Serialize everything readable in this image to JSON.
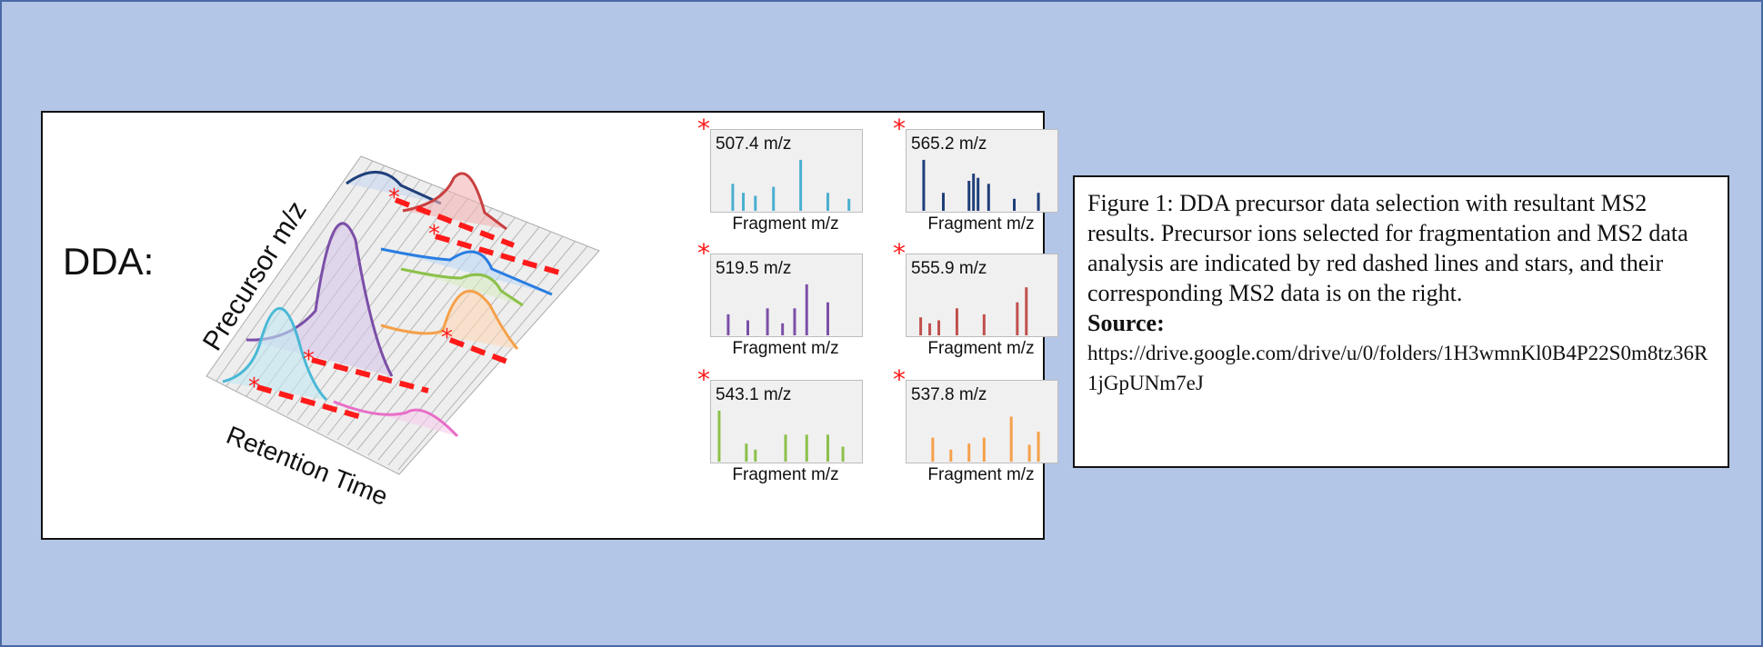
{
  "panel": {
    "method_label": "DDA:",
    "precursor_axis_label": "Precursor m/z",
    "time_axis_label": "Retention Time"
  },
  "colors": {
    "background": "#b3c6e7",
    "selection": "#ff1a1a",
    "peaks": [
      "#1f3f7a",
      "#c94040",
      "#2a7de1",
      "#8cc04a",
      "#f5a04a",
      "#7b4fa8",
      "#4ab8d6",
      "#e86fc8"
    ]
  },
  "spectra": [
    {
      "precursor": "507.4 m/z",
      "axis_label": "Fragment m/z",
      "color": "#4aafd0",
      "fragments": [
        0.15,
        0.22,
        0.3,
        0.42,
        0.6,
        0.78,
        0.92
      ],
      "intensities": [
        0.45,
        0.3,
        0.25,
        0.4,
        0.85,
        0.3,
        0.2
      ]
    },
    {
      "precursor": "565.2 m/z",
      "axis_label": "Fragment m/z",
      "color": "#1f3f7a",
      "fragments": [
        0.12,
        0.25,
        0.42,
        0.45,
        0.48,
        0.55,
        0.72,
        0.88
      ],
      "intensities": [
        0.85,
        0.3,
        0.5,
        0.62,
        0.55,
        0.45,
        0.2,
        0.3
      ]
    },
    {
      "precursor": "519.5 m/z",
      "axis_label": "Fragment m/z",
      "color": "#7b4fa8",
      "fragments": [
        0.12,
        0.25,
        0.38,
        0.48,
        0.56,
        0.64,
        0.78
      ],
      "intensities": [
        0.35,
        0.25,
        0.45,
        0.2,
        0.45,
        0.85,
        0.55
      ]
    },
    {
      "precursor": "555.9 m/z",
      "axis_label": "Fragment m/z",
      "color": "#c0504d",
      "fragments": [
        0.1,
        0.16,
        0.22,
        0.34,
        0.52,
        0.74,
        0.8
      ],
      "intensities": [
        0.3,
        0.2,
        0.25,
        0.45,
        0.35,
        0.55,
        0.8
      ]
    },
    {
      "precursor": "543.1 m/z",
      "axis_label": "Fragment m/z",
      "color": "#8cc04a",
      "fragments": [
        0.06,
        0.24,
        0.3,
        0.5,
        0.64,
        0.78,
        0.88
      ],
      "intensities": [
        0.85,
        0.3,
        0.2,
        0.45,
        0.45,
        0.45,
        0.25
      ]
    },
    {
      "precursor": "537.8 m/z",
      "axis_label": "Fragment m/z",
      "color": "#f5a04a",
      "fragments": [
        0.18,
        0.3,
        0.42,
        0.52,
        0.7,
        0.82,
        0.88
      ],
      "intensities": [
        0.4,
        0.2,
        0.3,
        0.4,
        0.75,
        0.28,
        0.5
      ]
    }
  ],
  "caption": {
    "text": "Figure 1: DDA precursor data selection with resultant MS2 results. Precursor ions selected for fragmentation and MS2 data analysis are indicated by red dashed lines and stars, and their corresponding MS2 data is on the right.",
    "source_label": "Source:",
    "source_url": "https://drive.google.com/drive/u/0/folders/1H3wmnKl0B4P22S0m8tz36R1jGpUNm7eJ"
  }
}
